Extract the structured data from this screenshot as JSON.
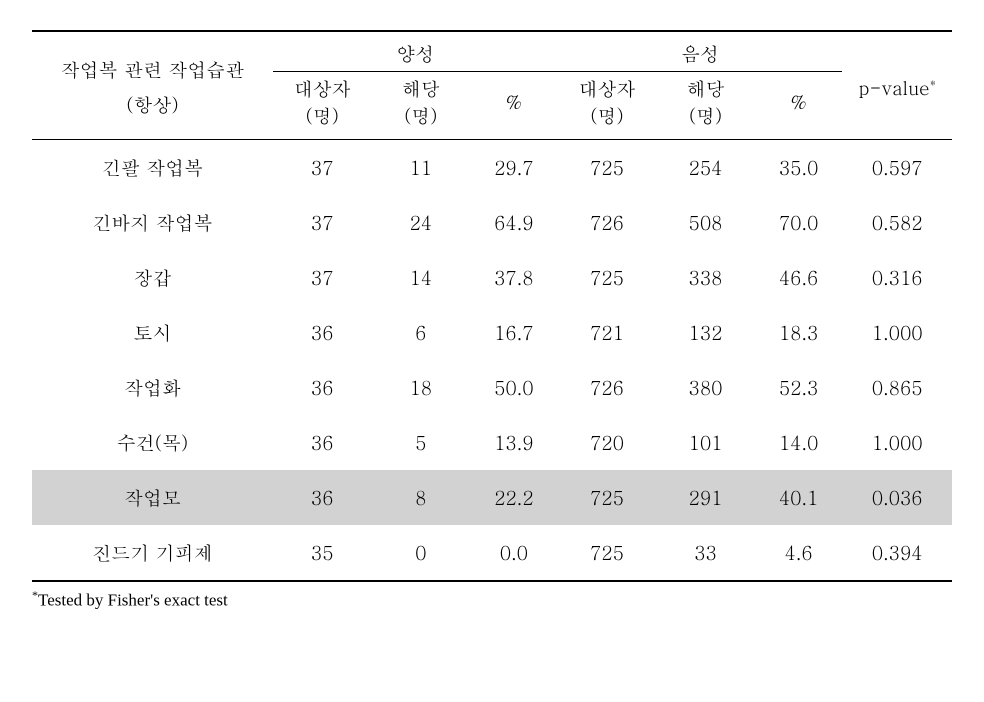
{
  "table": {
    "type": "table",
    "background_color": "#ffffff",
    "text_color": "#000000",
    "highlight_color": "#d2d2d2",
    "border_color": "#000000",
    "font_family": "Batang, Times New Roman, serif",
    "header_fontsize": 19,
    "body_fontsize": 19,
    "footnote_fontsize": 17,
    "row_label_header_line1": "작업복 관련 작업습관",
    "row_label_header_line2": "(항상)",
    "group1_label": "양성",
    "group2_label": "음성",
    "sub_col1_line1": "대상자",
    "sub_col1_line2": "(명)",
    "sub_col2_line1": "해당",
    "sub_col2_line2": "(명)",
    "sub_col3": "%",
    "pvalue_label": "p-value",
    "pvalue_sup": "*",
    "columns": [
      "label",
      "pos_n",
      "pos_k",
      "pos_pct",
      "neg_n",
      "neg_k",
      "neg_pct",
      "pvalue"
    ],
    "col_align": [
      "center",
      "center",
      "center",
      "center",
      "center",
      "center",
      "center",
      "center"
    ],
    "rows": [
      {
        "label": "긴팔 작업복",
        "pos_n": "37",
        "pos_k": "11",
        "pos_pct": "29.7",
        "neg_n": "725",
        "neg_k": "254",
        "neg_pct": "35.0",
        "pvalue": "0.597",
        "highlight": false
      },
      {
        "label": "긴바지 작업복",
        "pos_n": "37",
        "pos_k": "24",
        "pos_pct": "64.9",
        "neg_n": "726",
        "neg_k": "508",
        "neg_pct": "70.0",
        "pvalue": "0.582",
        "highlight": false
      },
      {
        "label": "장갑",
        "pos_n": "37",
        "pos_k": "14",
        "pos_pct": "37.8",
        "neg_n": "725",
        "neg_k": "338",
        "neg_pct": "46.6",
        "pvalue": "0.316",
        "highlight": false
      },
      {
        "label": "토시",
        "pos_n": "36",
        "pos_k": "6",
        "pos_pct": "16.7",
        "neg_n": "721",
        "neg_k": "132",
        "neg_pct": "18.3",
        "pvalue": "1.000",
        "highlight": false
      },
      {
        "label": "작업화",
        "pos_n": "36",
        "pos_k": "18",
        "pos_pct": "50.0",
        "neg_n": "726",
        "neg_k": "380",
        "neg_pct": "52.3",
        "pvalue": "0.865",
        "highlight": false
      },
      {
        "label": "수건(목)",
        "pos_n": "36",
        "pos_k": "5",
        "pos_pct": "13.9",
        "neg_n": "720",
        "neg_k": "101",
        "neg_pct": "14.0",
        "pvalue": "1.000",
        "highlight": false
      },
      {
        "label": "작업모",
        "pos_n": "36",
        "pos_k": "8",
        "pos_pct": "22.2",
        "neg_n": "725",
        "neg_k": "291",
        "neg_pct": "40.1",
        "pvalue": "0.036",
        "highlight": true
      },
      {
        "label": "진드기 기피제",
        "pos_n": "35",
        "pos_k": "0",
        "pos_pct": "0.0",
        "neg_n": "725",
        "neg_k": "33",
        "neg_pct": "4.6",
        "pvalue": "0.394",
        "highlight": false
      }
    ],
    "footnote_sup": "*",
    "footnote_text": "Tested by Fisher's exact test"
  }
}
